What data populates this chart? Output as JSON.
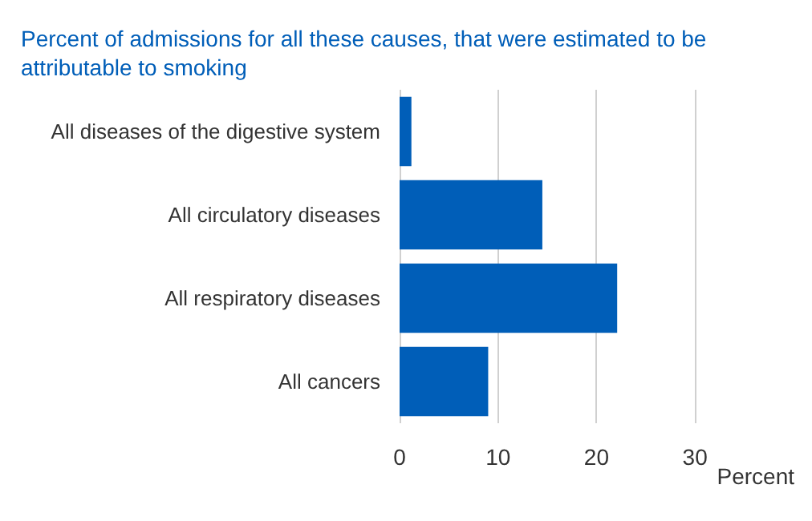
{
  "chart_data": {
    "type": "bar",
    "orientation": "horizontal",
    "title": "Percent of admissions for all these causes, that were estimated to be attributable to smoking",
    "xlabel": "Percent",
    "categories": [
      "All diseases of the digestive system",
      "All circulatory diseases",
      "All respiratory diseases",
      "All cancers"
    ],
    "values": [
      1.2,
      14.5,
      22.1,
      9.0
    ],
    "color": "#005eb8",
    "xlim": [
      0,
      30
    ],
    "xticks": [
      0,
      10,
      20,
      30
    ],
    "grid": "x"
  }
}
